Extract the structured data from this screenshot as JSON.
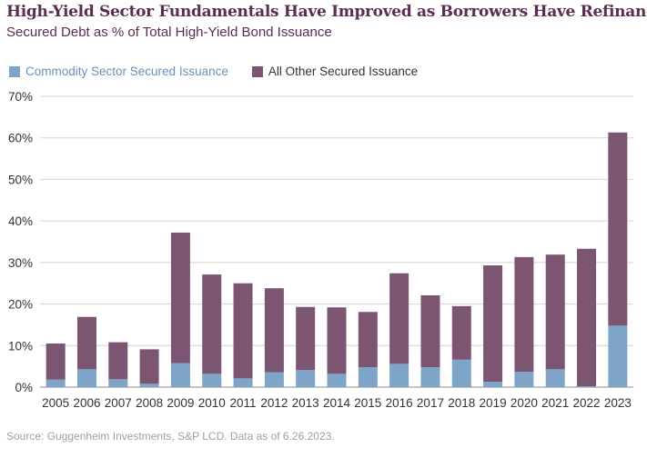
{
  "header": {
    "title": "High-Yield Sector Fundamentals Have Improved as Borrowers Have Refinanced",
    "subtitle": "Secured Debt as % of Total High-Yield Bond Issuance"
  },
  "footer": {
    "source": "Source: Guggenheim Investments, S&P LCD. Data as of 6.26.2023."
  },
  "colors": {
    "commodity": "#7ea4c7",
    "other": "#7c5573",
    "legend_commodity_text": "#6a90b8",
    "legend_other_text": "#333333",
    "grid": "#d4d4d4",
    "axis_text": "#333333"
  },
  "chart_data": {
    "type": "bar",
    "stacked": true,
    "categories": [
      "2005",
      "2006",
      "2007",
      "2008",
      "2009",
      "2010",
      "2011",
      "2012",
      "2013",
      "2014",
      "2015",
      "2016",
      "2017",
      "2018",
      "2019",
      "2020",
      "2021",
      "2022",
      "2023"
    ],
    "series": [
      {
        "name": "Commodity Sector Secured Issuance",
        "values": [
          1.8,
          4.3,
          1.9,
          0.8,
          5.8,
          3.2,
          2.1,
          3.6,
          4.1,
          3.2,
          4.8,
          5.6,
          4.8,
          6.6,
          1.3,
          3.7,
          4.3,
          0.2,
          14.8
        ]
      },
      {
        "name": "All Other Secured Issuance",
        "values": [
          8.7,
          12.6,
          8.9,
          8.3,
          31.4,
          23.9,
          22.9,
          20.2,
          15.2,
          16.0,
          13.3,
          21.8,
          17.3,
          12.9,
          28.0,
          27.6,
          27.6,
          33.1,
          46.5
        ]
      }
    ],
    "ylim": [
      0,
      70
    ],
    "yticks": [
      0,
      10,
      20,
      30,
      40,
      50,
      60,
      70
    ],
    "ytick_labels": [
      "0%",
      "10%",
      "20%",
      "30%",
      "40%",
      "50%",
      "60%",
      "70%"
    ],
    "grid": true,
    "legend": "top-left"
  }
}
